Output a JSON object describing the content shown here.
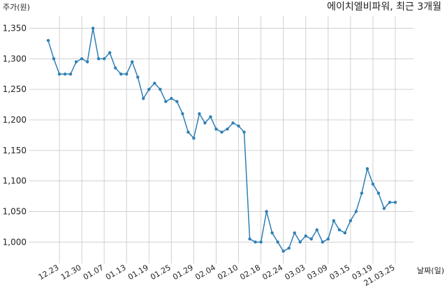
{
  "chart_data": {
    "type": "line",
    "title": "에이치엘비파워, 최근 3개월",
    "y_label": "주가(원)",
    "x_label": "날짜(일)",
    "categories": [
      null,
      null,
      "12.23",
      null,
      null,
      null,
      "12.30",
      null,
      null,
      null,
      "01.07",
      null,
      null,
      null,
      "01.13",
      null,
      null,
      null,
      "01.19",
      null,
      null,
      null,
      "01.25",
      null,
      null,
      null,
      "01.29",
      null,
      null,
      null,
      "02.04",
      null,
      null,
      null,
      "02.10",
      null,
      null,
      null,
      "02.18",
      null,
      null,
      null,
      "02.24",
      null,
      null,
      null,
      "03.03",
      null,
      null,
      null,
      "03.09",
      null,
      null,
      null,
      "03.15",
      null,
      null,
      null,
      "03.19",
      null,
      null,
      null,
      "21.03.25"
    ],
    "series": [
      {
        "name": "주가",
        "color": "#2f7fb5",
        "values": [
          1330,
          1300,
          1275,
          1275,
          1275,
          1295,
          1300,
          1295,
          1350,
          1300,
          1300,
          1310,
          1285,
          1275,
          1275,
          1295,
          1270,
          1235,
          1250,
          1260,
          1250,
          1230,
          1235,
          1230,
          1210,
          1180,
          1170,
          1210,
          1195,
          1205,
          1185,
          1180,
          1185,
          1195,
          1190,
          1180,
          1005,
          1000,
          1000,
          1050,
          1015,
          1000,
          985,
          990,
          1015,
          1000,
          1010,
          1005,
          1020,
          1000,
          1005,
          1035,
          1020,
          1015,
          1035,
          1050,
          1080,
          1120,
          1095,
          1080,
          1055,
          1065,
          1065
        ]
      }
    ],
    "ylim": [
      965,
      1370
    ],
    "yticks": [
      {
        "value": 1000,
        "label": "1,000"
      },
      {
        "value": 1050,
        "label": "1,050"
      },
      {
        "value": 1100,
        "label": "1,100"
      },
      {
        "value": 1150,
        "label": "1,150"
      },
      {
        "value": 1200,
        "label": "1,200"
      },
      {
        "value": 1250,
        "label": "1,250"
      },
      {
        "value": 1300,
        "label": "1,300"
      },
      {
        "value": 1350,
        "label": "1,350"
      }
    ],
    "grid": true
  }
}
